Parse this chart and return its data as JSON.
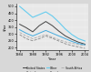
{
  "years": [
    1984,
    1986,
    1988,
    1990,
    1992,
    1994,
    1996,
    1998,
    2000,
    2002,
    2004
  ],
  "series": {
    "United States": {
      "values": [
        370,
        345,
        315,
        360,
        390,
        360,
        320,
        285,
        260,
        240,
        225
      ],
      "color": "#444444",
      "linestyle": "-",
      "linewidth": 0.7
    },
    "Australia": {
      "values": [
        295,
        265,
        250,
        265,
        285,
        268,
        248,
        228,
        215,
        205,
        195
      ],
      "color": "#888888",
      "linestyle": "--",
      "linewidth": 0.6
    },
    "Other": {
      "values": [
        500,
        460,
        420,
        440,
        460,
        430,
        385,
        335,
        295,
        265,
        248
      ],
      "color": "#66ccee",
      "linestyle": "-",
      "linewidth": 0.8
    },
    "Canada": {
      "values": [
        330,
        305,
        285,
        305,
        325,
        305,
        285,
        265,
        245,
        230,
        220
      ],
      "color": "#44aadd",
      "linestyle": "-",
      "linewidth": 0.7
    },
    "South Africa": {
      "values": [
        310,
        285,
        265,
        280,
        295,
        275,
        258,
        242,
        232,
        222,
        215
      ],
      "color": "#aaaaaa",
      "linestyle": "--",
      "linewidth": 0.6
    }
  },
  "xlabel": "Year",
  "ylabel": "$/oz",
  "ylim": [
    180,
    520
  ],
  "xlim": [
    1983,
    2005
  ],
  "yticks": [
    200,
    250,
    300,
    350,
    400,
    450,
    500
  ],
  "xticks": [
    1984,
    1988,
    1992,
    1996,
    2000,
    2004
  ],
  "legend_order": [
    "United States",
    "Australia",
    "Other",
    "Canada",
    "South Africa"
  ],
  "bg_color": "#d8d8d8",
  "plot_bg": "#e8e8e8"
}
